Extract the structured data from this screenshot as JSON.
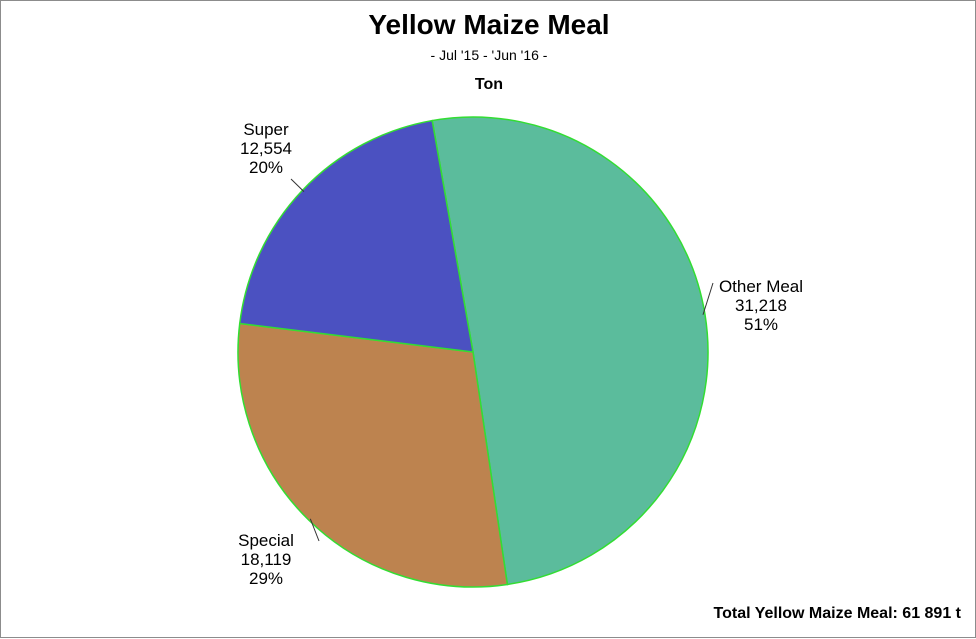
{
  "chart_data": {
    "type": "pie",
    "title": "Yellow Maize Meal",
    "subtitle": "- Jul '15 - 'Jun '16 -",
    "unit": "Ton",
    "slices": [
      {
        "name": "Other Meal",
        "value": 31218,
        "value_label": "31,218",
        "percent_label": "51%",
        "color": "#5bbc9c"
      },
      {
        "name": "Special",
        "value": 18119,
        "value_label": "18,119",
        "percent_label": "29%",
        "color": "#bd834f"
      },
      {
        "name": "Super",
        "value": 12554,
        "value_label": "12,554",
        "percent_label": "20%",
        "color": "#4b51c1"
      }
    ],
    "edge_color": "#33dd33",
    "total_label": "Total Yellow Maize Meal: 61 891 t"
  }
}
